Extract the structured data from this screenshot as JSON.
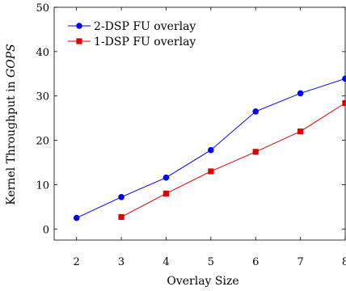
{
  "chart_data": {
    "type": "line",
    "xlabel": "Overlay Size",
    "ylabel_prefix": "Kernel Throughput in ",
    "ylabel_unit": "GOPS",
    "xlim": [
      1.5,
      8
    ],
    "ylim": [
      -2.5,
      50
    ],
    "x_ticks": [
      2,
      3,
      4,
      5,
      6,
      7,
      8
    ],
    "y_ticks": [
      0,
      10,
      20,
      30,
      40,
      50
    ],
    "grid": false,
    "legend_position": "top-left",
    "series": [
      {
        "name": "2-DSP FU overlay",
        "color": "#0000ff",
        "marker": "circle",
        "x": [
          2,
          3,
          4,
          5,
          6,
          7,
          8
        ],
        "y": [
          2.5,
          7.2,
          11.6,
          17.8,
          26.5,
          30.6,
          33.9
        ]
      },
      {
        "name": "1-DSP FU overlay",
        "color": "#e00000",
        "marker": "square",
        "x": [
          3,
          4,
          5,
          6,
          7,
          8
        ],
        "y": [
          2.7,
          8.0,
          13.0,
          17.4,
          22.0,
          28.4
        ]
      }
    ]
  }
}
